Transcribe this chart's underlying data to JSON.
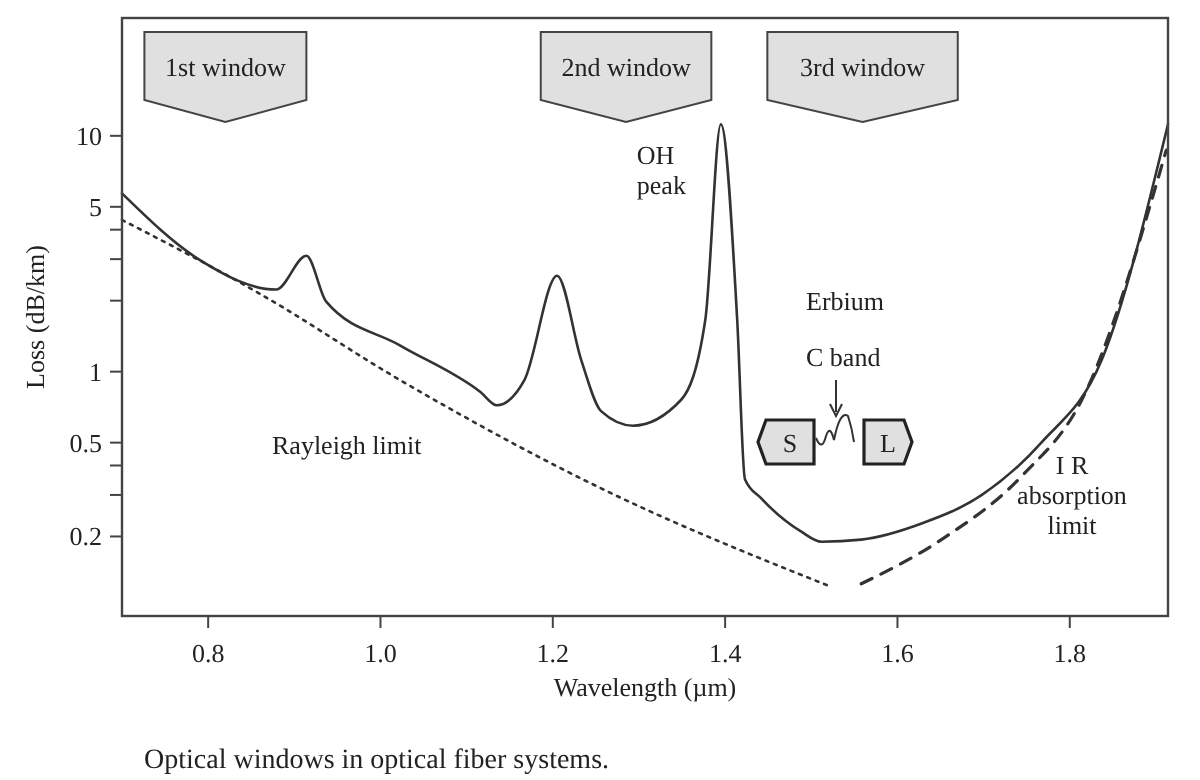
{
  "chart_data": {
    "type": "line",
    "xlabel": "Wavelength (µm)",
    "ylabel": "Loss (dB/km)",
    "log": "y",
    "xlim": [
      0.7,
      1.914
    ],
    "ylim": [
      0.092,
      31.6
    ],
    "xticks": [
      {
        "value": 0.8,
        "label": "0.8"
      },
      {
        "value": 1.0,
        "label": "1.0"
      },
      {
        "value": 1.2,
        "label": "1.2"
      },
      {
        "value": 1.4,
        "label": "1.4"
      },
      {
        "value": 1.6,
        "label": "1.6"
      },
      {
        "value": 1.8,
        "label": "1.8"
      }
    ],
    "yticks": [
      {
        "value": 0.2,
        "label": "0.2"
      },
      {
        "value": 0.3,
        "label": null
      },
      {
        "value": 0.4,
        "label": null
      },
      {
        "value": 0.5,
        "label": "0.5"
      },
      {
        "value": 1,
        "label": "1"
      },
      {
        "value": 2,
        "label": null
      },
      {
        "value": 3,
        "label": null
      },
      {
        "value": 4,
        "label": null
      },
      {
        "value": 5,
        "label": "5"
      },
      {
        "value": 10,
        "label": "10"
      }
    ],
    "grid": false,
    "marker": "none",
    "series": [
      {
        "color": "#333333",
        "line_style": "solid",
        "x": [
          0.7,
          0.79,
          0.879,
          0.914,
          0.937,
          1.023,
          1.116,
          1.135,
          1.167,
          1.205,
          1.233,
          1.256,
          1.293,
          1.349,
          1.377,
          1.395,
          1.414,
          1.423,
          1.442,
          1.488,
          1.512,
          1.558,
          1.628,
          1.698,
          1.767,
          1.837,
          1.914
        ],
        "values": [
          5.7,
          2.98,
          2.23,
          3.1,
          1.98,
          1.29,
          0.82,
          0.72,
          0.92,
          2.55,
          1.12,
          0.68,
          0.59,
          0.76,
          1.66,
          11.2,
          1.66,
          0.35,
          0.29,
          0.21,
          0.19,
          0.194,
          0.227,
          0.3,
          0.5,
          1.12,
          11.2
        ]
      },
      {
        "name": "Rayleigh limit",
        "color": "#333333",
        "line_style": "dotted",
        "x": [
          0.7,
          0.86,
          1.023,
          1.256,
          1.519
        ],
        "values": [
          4.4,
          2.14,
          0.92,
          0.32,
          0.124
        ]
      },
      {
        "name": "I R\nabsorption\nlimit",
        "color": "#333333",
        "line_style": "dashed",
        "x": [
          1.558,
          1.651,
          1.744,
          1.814,
          1.912
        ],
        "values": [
          0.126,
          0.194,
          0.36,
          0.76,
          8.7
        ]
      }
    ],
    "bands": [
      {
        "axis": "x",
        "from": 0.726,
        "to": 0.914,
        "label": "1st window",
        "color": "#e0e0e0"
      },
      {
        "axis": "x",
        "from": 1.186,
        "to": 1.384,
        "label": "2nd window",
        "color": "#e0e0e0"
      },
      {
        "axis": "x",
        "from": 1.449,
        "to": 1.67,
        "label": "3rd window",
        "color": "#e0e0e0"
      }
    ],
    "annotations": [
      {
        "text": "OH\npeak",
        "x": 1.395,
        "y": 11.2
      },
      "Erbium",
      "C band",
      "S",
      "L",
      "Optical windows in optical fiber systems."
    ]
  }
}
